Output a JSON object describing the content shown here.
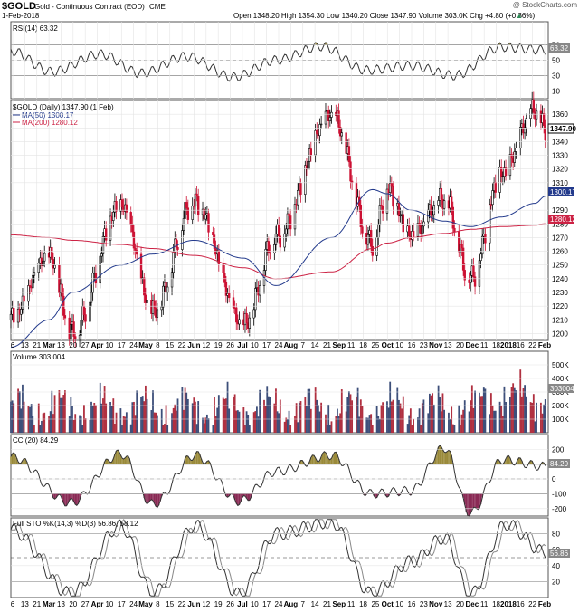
{
  "header": {
    "symbol": "$GOLD",
    "description": "Gold - Continuous Contract (EOD)",
    "exchange": "CME",
    "date": "1-Feb-2018",
    "watermark": "@ StockCharts.com",
    "ohlc": "Open 1348.20  High 1354.30  Low 1340.20  Close 1347.90  Volume 303.0K  Chg +4.80 (+0.36%)",
    "change_marker": "▲"
  },
  "panels": {
    "rsi": {
      "legend": "RSI(14) 63.32",
      "value_label": "63.32",
      "ticks": [
        "70",
        "50",
        "30",
        "10"
      ]
    },
    "price": {
      "legend": "$GOLD (Daily) 1347.90 (1 Feb)",
      "ma50_legend": "MA(50) 1300.17",
      "ma200_legend": "MA(200) 1280.12",
      "last_label": "1347.90",
      "ma50_label": "1300.17",
      "ma200_label": "1280.12",
      "ticks": [
        "1360",
        "1350",
        "1340",
        "1330",
        "1320",
        "1310",
        "1290",
        "1280",
        "1270",
        "1260",
        "1250",
        "1240",
        "1230",
        "1220",
        "1210",
        "1200"
      ]
    },
    "volume": {
      "legend": "Volume 303,004",
      "value_label": "303004",
      "ticks": [
        "500K",
        "400K",
        "300K",
        "200K",
        "100K"
      ]
    },
    "cci": {
      "legend": "CCI(20) 84.29",
      "value_label": "84.29",
      "ticks": [
        "200",
        "100",
        "0",
        "-100",
        "-200"
      ]
    },
    "sto": {
      "legend": "Full STO %K(14,3) %D(3) 56.86, 58.12",
      "value_label": "56.86",
      "ticks": [
        "80",
        "60",
        "40",
        "20"
      ]
    }
  },
  "x_axis": {
    "labels": [
      "6",
      "13",
      "21",
      "Mar",
      "13",
      "20",
      "27",
      "Apr",
      "10",
      "17",
      "24",
      "May",
      "8",
      "15",
      "22",
      "Jun",
      "12",
      "19",
      "26",
      "Jul",
      "10",
      "17",
      "24",
      "Aug",
      "7",
      "14",
      "21",
      "Sep",
      "11",
      "18",
      "25",
      "Oct",
      "10",
      "16",
      "23",
      "Nov",
      "13",
      "20",
      "Dec",
      "11",
      "18",
      "2018",
      "16",
      "22",
      "Feb"
    ]
  },
  "chart_data": [
    {
      "type": "line",
      "name": "RSI(14)",
      "ylim": [
        0,
        100
      ],
      "x": [
        "2017-02-01",
        "2017-03-01",
        "2017-04-03",
        "2017-05-01",
        "2017-06-01",
        "2017-07-03",
        "2017-08-01",
        "2017-09-01",
        "2017-10-02",
        "2017-11-01",
        "2017-12-01",
        "2018-01-02",
        "2018-02-01"
      ],
      "values": [
        62,
        35,
        58,
        33,
        55,
        28,
        50,
        68,
        37,
        43,
        30,
        67,
        63.32
      ]
    },
    {
      "type": "line",
      "name": "$GOLD (Daily)",
      "ylim": [
        1195,
        1370
      ],
      "x": [
        "2017-02-01",
        "2017-02-27",
        "2017-03-15",
        "2017-04-17",
        "2017-05-09",
        "2017-06-06",
        "2017-07-10",
        "2017-08-01",
        "2017-09-08",
        "2017-10-06",
        "2017-10-16",
        "2017-11-01",
        "2017-11-24",
        "2017-12-12",
        "2018-01-02",
        "2018-01-25",
        "2018-02-01"
      ],
      "series": [
        {
          "name": "$GOLD",
          "values": [
            1210,
            1255,
            1200,
            1292,
            1215,
            1295,
            1205,
            1270,
            1358,
            1265,
            1305,
            1270,
            1297,
            1240,
            1315,
            1362,
            1347.9
          ]
        },
        {
          "name": "MA(50)",
          "values": [
            1190,
            1210,
            1230,
            1250,
            1258,
            1268,
            1255,
            1235,
            1270,
            1305,
            1302,
            1290,
            1282,
            1278,
            1285,
            1295,
            1300.17
          ]
        },
        {
          "name": "MA(200)",
          "values": [
            1272,
            1270,
            1268,
            1265,
            1262,
            1257,
            1248,
            1240,
            1245,
            1262,
            1266,
            1270,
            1273,
            1276,
            1278,
            1279,
            1280.12
          ]
        }
      ]
    },
    {
      "type": "bar",
      "name": "Volume",
      "ylim": [
        0,
        600000
      ],
      "note_last": 303004
    },
    {
      "type": "line",
      "name": "CCI(20)",
      "ylim": [
        -250,
        300
      ],
      "x": [
        "2017-02-01",
        "2017-03-14",
        "2017-04-17",
        "2017-05-09",
        "2017-06-07",
        "2017-07-07",
        "2017-08-01",
        "2017-09-08",
        "2017-10-05",
        "2017-11-01",
        "2017-11-24",
        "2017-12-12",
        "2018-01-03",
        "2018-02-01"
      ],
      "values": [
        150,
        -160,
        170,
        -170,
        160,
        -150,
        50,
        160,
        -100,
        -80,
        210,
        -230,
        130,
        84.29
      ]
    },
    {
      "type": "line",
      "name": "Full STO %K(14,3) %D(3)",
      "ylim": [
        0,
        100
      ],
      "x": [
        "2017-02-01",
        "2017-03-14",
        "2017-04-17",
        "2017-05-09",
        "2017-06-07",
        "2017-07-07",
        "2017-08-01",
        "2017-09-08",
        "2017-10-05",
        "2017-11-01",
        "2017-11-24",
        "2017-12-12",
        "2018-01-05",
        "2018-02-01"
      ],
      "values": [
        85,
        5,
        90,
        5,
        90,
        4,
        80,
        95,
        5,
        45,
        75,
        4,
        92,
        56.86
      ]
    }
  ]
}
